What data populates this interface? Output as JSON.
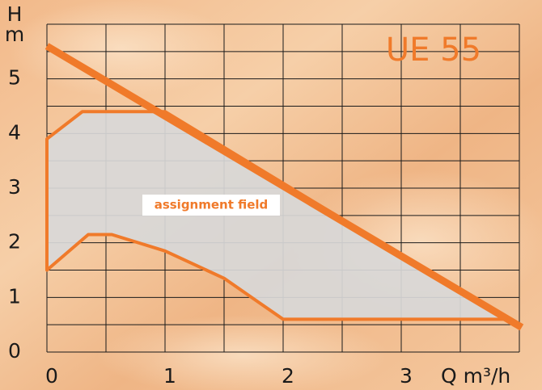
{
  "chart_data": {
    "type": "line",
    "title": "UE 55",
    "y_label_top": "H",
    "y_label_unit": "m",
    "x_label": "Q m³/h",
    "annotation": "assignment field",
    "xlim": [
      0,
      4
    ],
    "ylim": [
      0,
      6
    ],
    "xticks": [
      0,
      1,
      2,
      3
    ],
    "yticks": [
      0,
      1,
      2,
      3,
      4,
      5
    ],
    "xgrid": [
      0,
      0.5,
      1,
      1.5,
      2,
      2.5,
      3,
      3.5,
      4
    ],
    "ygrid": [
      0,
      0.5,
      1,
      1.5,
      2,
      2.5,
      3,
      3.5,
      4,
      4.5,
      5,
      5.5,
      6
    ],
    "grid": true,
    "series": [
      {
        "color": "#f07a2a",
        "fill": "#d8d8d8",
        "x": [
          0,
          0,
          0.3,
          1.0,
          3.9,
          2.0,
          1.8,
          1.5,
          1.0,
          0.55,
          0.35,
          0
        ],
        "values": [
          1.5,
          3.9,
          4.4,
          4.4,
          0.6,
          0.6,
          0.9,
          1.35,
          1.85,
          2.15,
          2.15,
          1.5
        ]
      },
      {
        "color": "#f07a2a",
        "x": [
          0,
          4.02
        ],
        "values": [
          5.6,
          0.45
        ]
      }
    ]
  }
}
